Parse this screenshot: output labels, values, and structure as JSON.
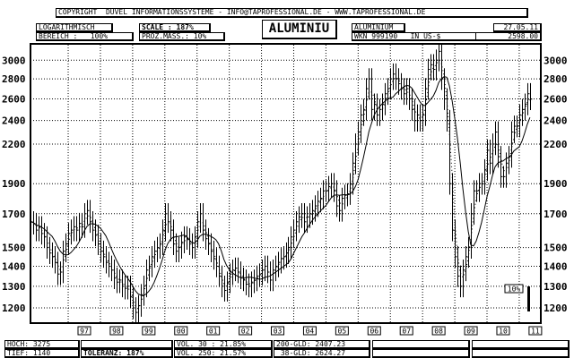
{
  "header": {
    "copyright": "COPYRIGHT  DÜVEL INFORMATIONSSYSTEME - INFO@TAPROFESSIONAL.DE - WWW.TAPROFESSIONAL.DE",
    "scale_type": "LOGARITHMISCH",
    "range": "BEREICH :   100%",
    "scale": "SCALE : 187%",
    "proz_mass": "PROZ.MASS.: 10%",
    "title": "ALUMINIU",
    "instrument": "ALUMINIUM",
    "wkn": "WKN 999190   IN US-$",
    "date": "27.05.11",
    "last_price": "2598.00"
  },
  "footer": {
    "high": "HOCH: 3275",
    "low": "TIEF: 1140",
    "tolerance": "TOLERANZ: 187%",
    "vol30": "VOL. 30 : 21.85%",
    "vol250": "VOL. 250: 21.57%",
    "gld200": "200-GLD: 2407.23",
    "gld38": " 38-GLD: 2624.27"
  },
  "chart_data": {
    "type": "bar",
    "scale": "log",
    "ylim": [
      1140,
      3180
    ],
    "xlim": [
      1995.83,
      2011.67
    ],
    "y_ticks": [
      1200,
      1300,
      1400,
      1500,
      1700,
      1900,
      2200,
      2400,
      2600,
      2800,
      3000
    ],
    "x_tick_labels": [
      "97",
      "98",
      "99",
      "00",
      "01",
      "02",
      "03",
      "04",
      "05",
      "06",
      "07",
      "08",
      "09",
      "10",
      "11"
    ],
    "grid": true,
    "scale_marker_label": "10%",
    "start": "1995-11",
    "interval": "month",
    "closes": [
      1650,
      1640,
      1600,
      1620,
      1580,
      1560,
      1500,
      1470,
      1450,
      1420,
      1360,
      1370,
      1480,
      1520,
      1580,
      1600,
      1620,
      1600,
      1640,
      1620,
      1700,
      1720,
      1650,
      1600,
      1570,
      1520,
      1480,
      1450,
      1420,
      1400,
      1380,
      1340,
      1320,
      1330,
      1300,
      1290,
      1300,
      1250,
      1200,
      1180,
      1210,
      1260,
      1300,
      1380,
      1400,
      1450,
      1480,
      1500,
      1520,
      1600,
      1700,
      1650,
      1600,
      1520,
      1480,
      1500,
      1530,
      1560,
      1550,
      1520,
      1500,
      1560,
      1650,
      1700,
      1600,
      1550,
      1520,
      1480,
      1440,
      1400,
      1350,
      1300,
      1280,
      1320,
      1360,
      1380,
      1390,
      1370,
      1340,
      1330,
      1310,
      1300,
      1320,
      1330,
      1350,
      1360,
      1380,
      1400,
      1370,
      1330,
      1380,
      1400,
      1420,
      1440,
      1450,
      1470,
      1500,
      1560,
      1600,
      1650,
      1680,
      1700,
      1650,
      1680,
      1700,
      1720,
      1750,
      1780,
      1800,
      1850,
      1850,
      1880,
      1900,
      1850,
      1750,
      1720,
      1800,
      1820,
      1830,
      1900,
      2050,
      2200,
      2300,
      2450,
      2500,
      2700,
      2800,
      2500,
      2550,
      2450,
      2500,
      2550,
      2650,
      2700,
      2800,
      2850,
      2800,
      2750,
      2700,
      2650,
      2700,
      2600,
      2500,
      2400,
      2450,
      2400,
      2450,
      2700,
      2900,
      2950,
      2900,
      3000,
      3100,
      2800,
      2600,
      2400,
      1900,
      1600,
      1450,
      1350,
      1300,
      1380,
      1450,
      1500,
      1700,
      1850,
      1850,
      1900,
      1900,
      2000,
      2150,
      2050,
      2200,
      2300,
      2100,
      1950,
      1950,
      2050,
      2100,
      2300,
      2350,
      2350,
      2450,
      2500,
      2550,
      2650,
      2598
    ]
  }
}
